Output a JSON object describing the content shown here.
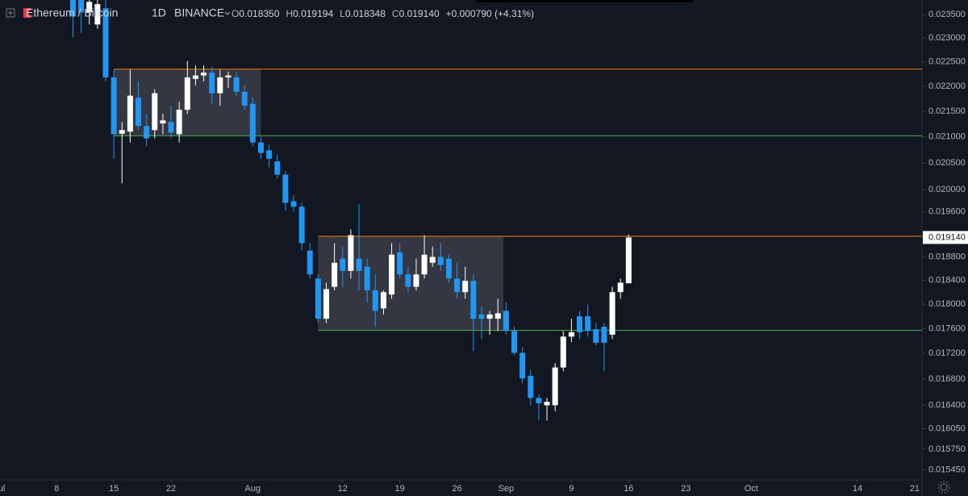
{
  "header": {
    "symbol": "Ethereum / Bitcoin",
    "interval": "1D",
    "exchange": "BINANCE",
    "ohlc": [
      {
        "key": "O",
        "value": "0.018350"
      },
      {
        "key": "H",
        "value": "0.019194"
      },
      {
        "key": "L",
        "value": "0.018348"
      },
      {
        "key": "C",
        "value": "0.019140"
      }
    ],
    "change": "+0.000790 (+4.31%)"
  },
  "chart_data": {
    "type": "candlestick",
    "log_scale": true,
    "up_color": "#ffffff",
    "down_color": "#2196f3",
    "x": [
      10,
      11,
      12,
      13,
      14,
      15,
      16,
      17,
      18,
      19,
      20,
      21,
      22,
      23,
      24,
      25,
      26,
      27,
      28,
      29,
      30,
      31,
      32,
      33,
      34,
      35,
      36,
      37,
      38,
      39,
      40,
      41,
      42,
      43,
      44,
      45,
      46,
      47,
      48,
      49,
      50,
      51,
      52,
      53,
      54,
      55,
      56,
      57,
      58,
      59,
      60,
      61,
      62,
      63,
      64,
      65,
      66,
      67,
      68,
      69,
      70,
      71,
      72,
      73,
      74,
      75,
      76,
      77,
      78
    ],
    "open": [
      0.02391,
      0.02382,
      0.02355,
      0.02329,
      0.02364,
      0.02218,
      0.02106,
      0.0211,
      0.02177,
      0.02121,
      0.02113,
      0.02126,
      0.02129,
      0.02105,
      0.02153,
      0.02215,
      0.02222,
      0.02228,
      0.02186,
      0.02218,
      0.02218,
      0.02189,
      0.02165,
      0.02089,
      0.02074,
      0.02053,
      0.02028,
      0.01979,
      0.01969,
      0.01891,
      0.01843,
      0.01776,
      0.01829,
      0.01877,
      0.01856,
      0.01877,
      0.01863,
      0.01823,
      0.01793,
      0.01816,
      0.01888,
      0.0185,
      0.01829,
      0.0185,
      0.0187,
      0.0188,
      0.01877,
      0.01843,
      0.0182,
      0.01839,
      0.01783,
      0.01776,
      0.01776,
      0.01789,
      0.01756,
      0.01721,
      0.01685,
      0.01651,
      0.0164,
      0.0164,
      0.01698,
      0.01747,
      0.0178,
      0.0178,
      0.01759,
      0.01763,
      0.0175,
      0.0182,
      0.01835
    ],
    "high": [
      0.024,
      0.02395,
      0.024,
      0.02395,
      0.02382,
      0.02234,
      0.02129,
      0.02234,
      0.0221,
      0.02145,
      0.02194,
      0.02145,
      0.02161,
      0.02169,
      0.02252,
      0.02243,
      0.02243,
      0.0224,
      0.02234,
      0.0223,
      0.0223,
      0.02202,
      0.02177,
      0.021,
      0.02085,
      0.02066,
      0.02035,
      0.0199,
      0.01976,
      0.01904,
      0.0185,
      0.01836,
      0.01904,
      0.01898,
      0.01928,
      0.01974,
      0.01877,
      0.0185,
      0.01823,
      0.01904,
      0.01904,
      0.01863,
      0.01877,
      0.01918,
      0.01898,
      0.01904,
      0.01884,
      0.0187,
      0.01863,
      0.0185,
      0.01796,
      0.01789,
      0.01809,
      0.01803,
      0.01763,
      0.0173,
      0.01694,
      0.01657,
      0.01651,
      0.01705,
      0.01756,
      0.01776,
      0.01789,
      0.01799,
      0.01769,
      0.01769,
      0.01829,
      0.01843,
      0.019194
    ],
    "low": [
      0.02302,
      0.02311,
      0.02329,
      0.0232,
      0.0221,
      0.02058,
      0.02012,
      0.02089,
      0.02113,
      0.02082,
      0.02097,
      0.02105,
      0.02097,
      0.02089,
      0.02145,
      0.02202,
      0.0221,
      0.02165,
      0.02161,
      0.02197,
      0.02181,
      0.02153,
      0.02082,
      0.02058,
      0.02042,
      0.0202,
      0.01961,
      0.0196,
      0.01891,
      0.01843,
      0.01769,
      0.01769,
      0.01823,
      0.01829,
      0.01843,
      0.01823,
      0.01803,
      0.01763,
      0.01783,
      0.01809,
      0.01843,
      0.0182,
      0.01823,
      0.01843,
      0.01863,
      0.01856,
      0.01836,
      0.01809,
      0.01809,
      0.01724,
      0.01743,
      0.0175,
      0.01756,
      0.0175,
      0.01717,
      0.01673,
      0.0164,
      0.01617,
      0.01617,
      0.01631,
      0.01692,
      0.01738,
      0.01743,
      0.01747,
      0.01733,
      0.01692,
      0.01743,
      0.01809,
      0.018348
    ],
    "close": [
      0.02346,
      0.02355,
      0.02378,
      0.02373,
      0.02218,
      0.02105,
      0.02113,
      0.02181,
      0.02121,
      0.02097,
      0.02186,
      0.02132,
      0.02108,
      0.02153,
      0.02218,
      0.02222,
      0.02228,
      0.02186,
      0.02218,
      0.02222,
      0.02189,
      0.02161,
      0.02089,
      0.02069,
      0.02058,
      0.02028,
      0.01976,
      0.01969,
      0.01904,
      0.0185,
      0.01776,
      0.01825,
      0.0187,
      0.01856,
      0.01918,
      0.01856,
      0.01823,
      0.01789,
      0.0182,
      0.01884,
      0.0185,
      0.01829,
      0.0185,
      0.01884,
      0.0188,
      0.01866,
      0.01843,
      0.0182,
      0.01839,
      0.01776,
      0.01776,
      0.01783,
      0.01785,
      0.01756,
      0.01721,
      0.01681,
      0.01651,
      0.01643,
      0.01645,
      0.01698,
      0.01747,
      0.01754,
      0.01754,
      0.01756,
      0.01737,
      0.01737,
      0.0182,
      0.01836,
      0.01914
    ],
    "xlim": [
      1.07,
      113.9
    ],
    "ylim": [
      0.01531,
      0.02382
    ],
    "xticks": [
      {
        "value": 1,
        "label": "Jul"
      },
      8,
      15,
      22,
      {
        "value": 32,
        "label": "Aug"
      },
      {
        "value": 43,
        "label": "12"
      },
      {
        "value": 50,
        "label": "19"
      },
      {
        "value": 57,
        "label": "26"
      },
      {
        "value": 63,
        "label": "Sep"
      },
      {
        "value": 71,
        "label": "9"
      },
      {
        "value": 78,
        "label": "16"
      },
      {
        "value": 85,
        "label": "23"
      },
      {
        "value": 93,
        "label": "Oct"
      },
      {
        "value": 106,
        "label": "14"
      },
      {
        "value": 113,
        "label": "21"
      }
    ],
    "yticks": [
      {
        "value": 0.0235,
        "label": "0.023500"
      },
      {
        "value": 0.023,
        "label": "0.023000"
      },
      {
        "value": 0.0225,
        "label": "0.022500"
      },
      {
        "value": 0.022,
        "label": "0.022000"
      },
      {
        "value": 0.0215,
        "label": "0.021500"
      },
      {
        "value": 0.021,
        "label": "0.021000"
      },
      {
        "value": 0.0205,
        "label": "0.020500"
      },
      {
        "value": 0.02,
        "label": "0.020000"
      },
      {
        "value": 0.0196,
        "label": "0.019600"
      },
      {
        "value": 0.0188,
        "label": "0.018800"
      },
      {
        "value": 0.0184,
        "label": "0.018400"
      },
      {
        "value": 0.018,
        "label": "0.018000"
      },
      {
        "value": 0.0176,
        "label": "0.017600"
      },
      {
        "value": 0.0172,
        "label": "0.017200"
      },
      {
        "value": 0.0168,
        "label": "0.016800"
      },
      {
        "value": 0.0164,
        "label": "0.016400"
      },
      {
        "value": 0.01605,
        "label": "0.016050"
      },
      {
        "value": 0.01575,
        "label": "0.015750"
      },
      {
        "value": 0.01545,
        "label": "0.015450"
      }
    ],
    "last_price": {
      "value": 0.01914,
      "label": "0.019140"
    },
    "levels": [
      {
        "value": 0.02235,
        "color": "#f57c00",
        "from": 15
      },
      {
        "value": 0.02102,
        "color": "#4caf50",
        "from": 15
      },
      {
        "value": 0.01916,
        "color": "#f57c00",
        "from": 40
      },
      {
        "value": 0.01757,
        "color": "#4caf50",
        "from": 40
      }
    ],
    "zones": [
      {
        "x": [
          15,
          33
        ],
        "y": [
          0.02102,
          0.02235
        ]
      },
      {
        "x": [
          40,
          62.7
        ],
        "y": [
          0.01757,
          0.01916
        ]
      }
    ]
  }
}
